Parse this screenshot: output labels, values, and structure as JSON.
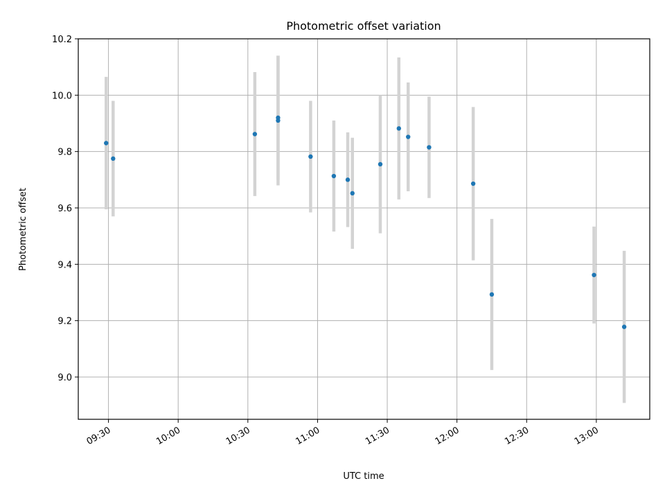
{
  "chart_data": {
    "type": "scatter",
    "title": "Photometric offset variation",
    "xlabel": "UTC time",
    "ylabel": "Photometric offset",
    "xlim": [
      "09:17",
      "13:23"
    ],
    "ylim": [
      8.85,
      10.2
    ],
    "x_ticks": [
      "09:30",
      "10:00",
      "10:30",
      "11:00",
      "11:30",
      "12:00",
      "12:30",
      "13:00"
    ],
    "y_ticks": [
      "9.0",
      "9.2",
      "9.4",
      "9.6",
      "9.8",
      "10.0",
      "10.2"
    ],
    "grid": true,
    "series": [
      {
        "points": [
          {
            "x": "09:29",
            "y": 9.83,
            "err": 0.235
          },
          {
            "x": "09:32",
            "y": 9.775,
            "err": 0.205
          },
          {
            "x": "10:33",
            "y": 9.862,
            "err": 0.22
          },
          {
            "x": "10:43",
            "y": 9.91,
            "err": 0.23
          },
          {
            "x": "10:43",
            "y": 9.92,
            "err": 0.22
          },
          {
            "x": "10:57",
            "y": 9.782,
            "err": 0.198
          },
          {
            "x": "11:07",
            "y": 9.713,
            "err": 0.197
          },
          {
            "x": "11:13",
            "y": 9.7,
            "err": 0.168
          },
          {
            "x": "11:15",
            "y": 9.652,
            "err": 0.197
          },
          {
            "x": "11:27",
            "y": 9.755,
            "err": 0.245
          },
          {
            "x": "11:35",
            "y": 9.882,
            "err": 0.252
          },
          {
            "x": "11:39",
            "y": 9.852,
            "err": 0.193
          },
          {
            "x": "11:48",
            "y": 9.815,
            "err": 0.18
          },
          {
            "x": "12:07",
            "y": 9.686,
            "err": 0.272
          },
          {
            "x": "12:15",
            "y": 9.293,
            "err": 0.268
          },
          {
            "x": "12:59",
            "y": 9.362,
            "err": 0.172
          },
          {
            "x": "13:12",
            "y": 9.178,
            "err": 0.27
          }
        ]
      }
    ],
    "colors": {
      "point": "#1f77b4",
      "errorbar": "#d3d3d3",
      "grid": "#b0b0b0"
    }
  }
}
